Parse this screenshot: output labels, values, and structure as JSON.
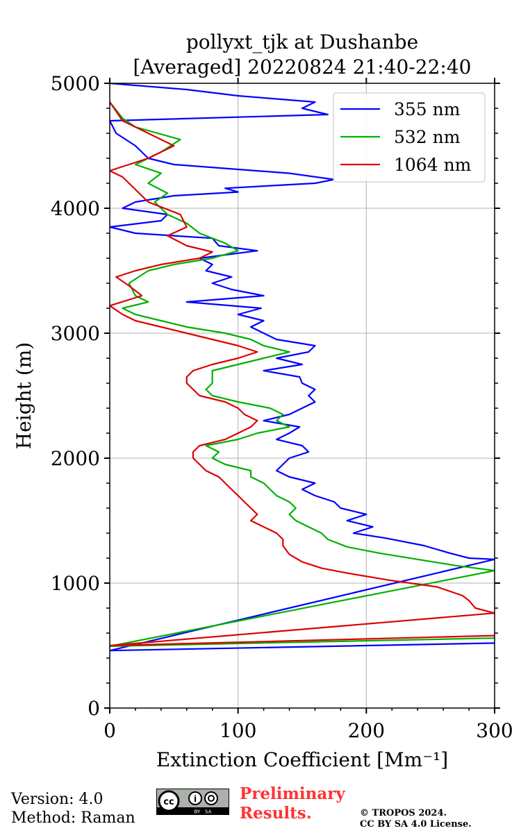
{
  "chart_data": {
    "type": "line",
    "title_line1": "pollyxt_tjk at Dushanbe",
    "title_line2": "[Averaged] 20220824 21:40-22:40",
    "xlabel": "Extinction Coefficient [Mm⁻¹]",
    "ylabel": "Height (m)",
    "xlim": [
      0,
      300
    ],
    "ylim": [
      0,
      5000
    ],
    "xticks": [
      "0",
      "100",
      "200",
      "300"
    ],
    "yticks": [
      "0",
      "1000",
      "2000",
      "3000",
      "4000",
      "5000"
    ],
    "grid": true,
    "legend_position": "top-right",
    "series": [
      {
        "name": "355 nm",
        "color": "#0000ff",
        "points": [
          [
            300,
            520
          ],
          [
            0,
            460
          ],
          [
            300,
            1190
          ],
          [
            280,
            1200
          ],
          [
            265,
            1240
          ],
          [
            245,
            1300
          ],
          [
            215,
            1360
          ],
          [
            190,
            1400
          ],
          [
            205,
            1450
          ],
          [
            185,
            1500
          ],
          [
            200,
            1550
          ],
          [
            180,
            1600
          ],
          [
            175,
            1650
          ],
          [
            160,
            1700
          ],
          [
            150,
            1750
          ],
          [
            160,
            1800
          ],
          [
            140,
            1850
          ],
          [
            130,
            1900
          ],
          [
            135,
            1950
          ],
          [
            140,
            2000
          ],
          [
            155,
            2050
          ],
          [
            150,
            2100
          ],
          [
            130,
            2150
          ],
          [
            140,
            2200
          ],
          [
            148,
            2250
          ],
          [
            120,
            2300
          ],
          [
            140,
            2350
          ],
          [
            150,
            2400
          ],
          [
            160,
            2450
          ],
          [
            155,
            2500
          ],
          [
            160,
            2550
          ],
          [
            150,
            2600
          ],
          [
            148,
            2650
          ],
          [
            120,
            2700
          ],
          [
            150,
            2750
          ],
          [
            130,
            2800
          ],
          [
            155,
            2850
          ],
          [
            160,
            2900
          ],
          [
            130,
            2950
          ],
          [
            120,
            3000
          ],
          [
            110,
            3050
          ],
          [
            120,
            3100
          ],
          [
            100,
            3150
          ],
          [
            118,
            3200
          ],
          [
            60,
            3250
          ],
          [
            120,
            3300
          ],
          [
            95,
            3350
          ],
          [
            80,
            3400
          ],
          [
            95,
            3450
          ],
          [
            75,
            3500
          ],
          [
            80,
            3550
          ],
          [
            70,
            3600
          ],
          [
            115,
            3660
          ],
          [
            85,
            3700
          ],
          [
            80,
            3760
          ],
          [
            20,
            3800
          ],
          [
            0,
            3850
          ],
          [
            40,
            3900
          ],
          [
            45,
            3950
          ],
          [
            10,
            4000
          ],
          [
            20,
            4050
          ],
          [
            50,
            4100
          ],
          [
            100,
            4130
          ],
          [
            90,
            4160
          ],
          [
            160,
            4200
          ],
          [
            175,
            4230
          ],
          [
            140,
            4280
          ],
          [
            50,
            4350
          ],
          [
            30,
            4400
          ],
          [
            20,
            4500
          ],
          [
            5,
            4600
          ],
          [
            0,
            4700
          ],
          [
            170,
            4750
          ],
          [
            150,
            4800
          ],
          [
            160,
            4850
          ],
          [
            100,
            4900
          ],
          [
            60,
            4950
          ],
          [
            0,
            5000
          ]
        ]
      },
      {
        "name": "532 nm",
        "color": "#00b000",
        "points": [
          [
            300,
            560
          ],
          [
            0,
            495
          ],
          [
            300,
            1100
          ],
          [
            270,
            1140
          ],
          [
            240,
            1190
          ],
          [
            210,
            1240
          ],
          [
            185,
            1290
          ],
          [
            170,
            1350
          ],
          [
            165,
            1400
          ],
          [
            155,
            1450
          ],
          [
            145,
            1500
          ],
          [
            140,
            1550
          ],
          [
            145,
            1600
          ],
          [
            140,
            1650
          ],
          [
            130,
            1700
          ],
          [
            125,
            1750
          ],
          [
            120,
            1800
          ],
          [
            110,
            1850
          ],
          [
            110,
            1900
          ],
          [
            90,
            1950
          ],
          [
            80,
            2000
          ],
          [
            85,
            2050
          ],
          [
            75,
            2100
          ],
          [
            100,
            2150
          ],
          [
            115,
            2200
          ],
          [
            140,
            2250
          ],
          [
            130,
            2300
          ],
          [
            135,
            2350
          ],
          [
            125,
            2400
          ],
          [
            100,
            2450
          ],
          [
            80,
            2500
          ],
          [
            75,
            2550
          ],
          [
            80,
            2600
          ],
          [
            80,
            2650
          ],
          [
            80,
            2700
          ],
          [
            100,
            2750
          ],
          [
            120,
            2800
          ],
          [
            140,
            2850
          ],
          [
            120,
            2900
          ],
          [
            110,
            2950
          ],
          [
            90,
            3000
          ],
          [
            60,
            3050
          ],
          [
            40,
            3100
          ],
          [
            20,
            3150
          ],
          [
            10,
            3200
          ],
          [
            30,
            3250
          ],
          [
            20,
            3300
          ],
          [
            15,
            3400
          ],
          [
            30,
            3500
          ],
          [
            50,
            3550
          ],
          [
            80,
            3600
          ],
          [
            100,
            3660
          ],
          [
            90,
            3720
          ],
          [
            70,
            3800
          ],
          [
            60,
            3880
          ],
          [
            45,
            3950
          ],
          [
            35,
            4050
          ],
          [
            45,
            4120
          ],
          [
            30,
            4200
          ],
          [
            40,
            4280
          ],
          [
            20,
            4350
          ],
          [
            40,
            4450
          ],
          [
            55,
            4550
          ],
          [
            20,
            4650
          ],
          [
            10,
            4720
          ],
          [
            0,
            4850
          ]
        ]
      },
      {
        "name": "1064 nm",
        "color": "#dd0000",
        "points": [
          [
            300,
            580
          ],
          [
            0,
            500
          ],
          [
            300,
            760
          ],
          [
            285,
            800
          ],
          [
            280,
            860
          ],
          [
            275,
            900
          ],
          [
            255,
            970
          ],
          [
            220,
            1020
          ],
          [
            185,
            1080
          ],
          [
            165,
            1120
          ],
          [
            150,
            1170
          ],
          [
            140,
            1230
          ],
          [
            135,
            1300
          ],
          [
            135,
            1350
          ],
          [
            130,
            1400
          ],
          [
            120,
            1450
          ],
          [
            110,
            1500
          ],
          [
            115,
            1550
          ],
          [
            110,
            1600
          ],
          [
            105,
            1650
          ],
          [
            100,
            1700
          ],
          [
            95,
            1750
          ],
          [
            90,
            1800
          ],
          [
            85,
            1850
          ],
          [
            75,
            1900
          ],
          [
            70,
            1950
          ],
          [
            65,
            2000
          ],
          [
            65,
            2050
          ],
          [
            70,
            2100
          ],
          [
            90,
            2150
          ],
          [
            100,
            2200
          ],
          [
            110,
            2250
          ],
          [
            115,
            2300
          ],
          [
            105,
            2350
          ],
          [
            100,
            2400
          ],
          [
            90,
            2450
          ],
          [
            70,
            2500
          ],
          [
            65,
            2550
          ],
          [
            60,
            2600
          ],
          [
            60,
            2650
          ],
          [
            65,
            2700
          ],
          [
            80,
            2750
          ],
          [
            100,
            2800
          ],
          [
            115,
            2850
          ],
          [
            100,
            2900
          ],
          [
            80,
            2950
          ],
          [
            60,
            3000
          ],
          [
            40,
            3050
          ],
          [
            20,
            3100
          ],
          [
            10,
            3150
          ],
          [
            0,
            3220
          ],
          [
            25,
            3300
          ],
          [
            15,
            3380
          ],
          [
            5,
            3450
          ],
          [
            20,
            3500
          ],
          [
            40,
            3550
          ],
          [
            70,
            3600
          ],
          [
            80,
            3650
          ],
          [
            60,
            3700
          ],
          [
            45,
            3780
          ],
          [
            60,
            3850
          ],
          [
            55,
            3950
          ],
          [
            30,
            4050
          ],
          [
            20,
            4150
          ],
          [
            10,
            4250
          ],
          [
            0,
            4300
          ],
          [
            30,
            4400
          ],
          [
            50,
            4500
          ],
          [
            30,
            4600
          ],
          [
            10,
            4700
          ],
          [
            0,
            4850
          ]
        ]
      }
    ]
  },
  "footer": {
    "version": "Version: 4.0",
    "method": "Method: Raman",
    "preliminary_line1": "Preliminary",
    "preliminary_line2": "Results.",
    "copyright_line1": "© TROPOS 2024.",
    "copyright_line2": "CC BY SA 4.0 License.",
    "license_badge": "cc-by-sa-icon",
    "badge_label": "BY   SA"
  }
}
